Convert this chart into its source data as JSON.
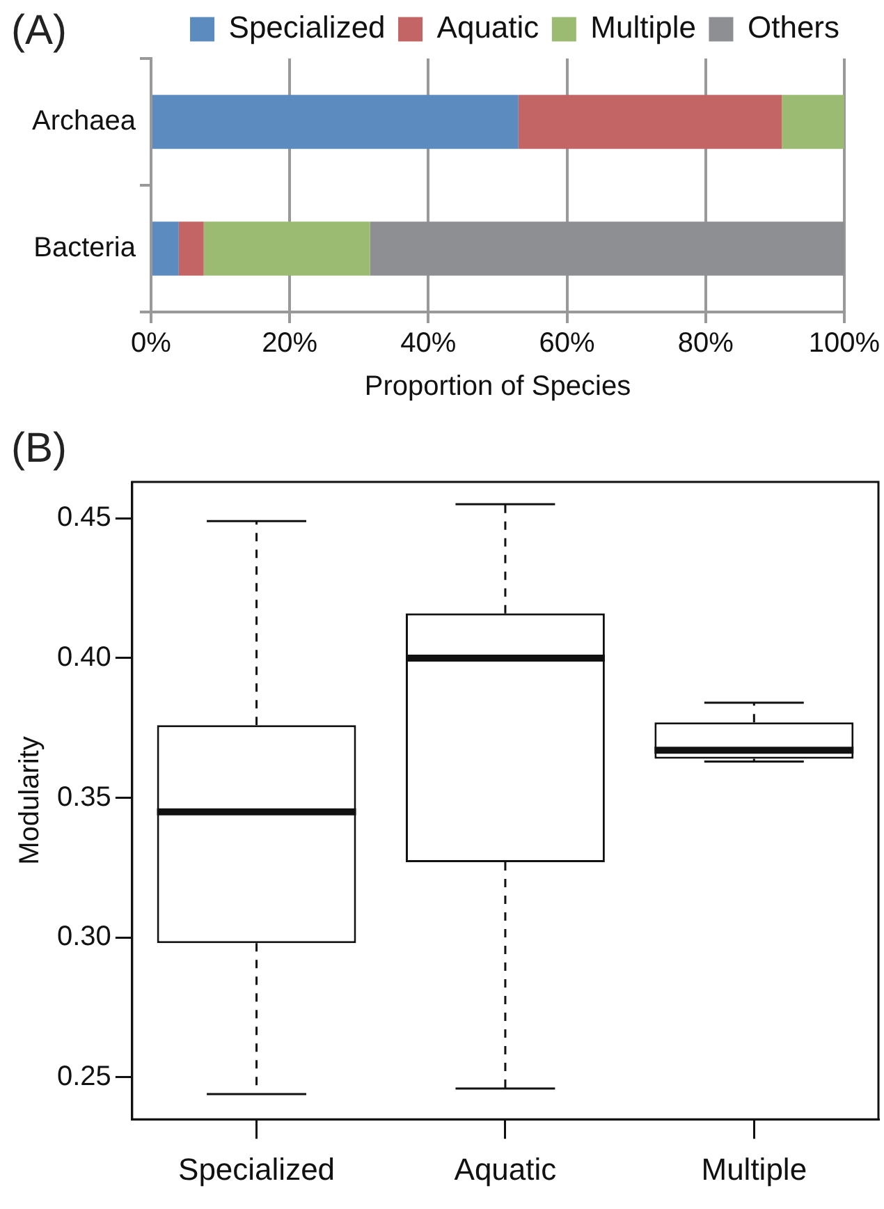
{
  "chart_data": [
    {
      "type": "bar",
      "orientation": "horizontal",
      "stacked": true,
      "categories": [
        "Archaea",
        "Bacteria"
      ],
      "series": [
        {
          "name": "Specialized",
          "color": "#5b8bbf",
          "values": [
            53,
            4
          ]
        },
        {
          "name": "Aquatic",
          "color": "#c46565",
          "values": [
            38,
            3.6
          ]
        },
        {
          "name": "Multiple",
          "color": "#9bbb73",
          "values": [
            9,
            24
          ]
        },
        {
          "name": "Others",
          "color": "#8e8f93",
          "values": [
            0,
            68.4
          ]
        }
      ],
      "xlim": [
        0,
        100
      ],
      "xticks": [
        {
          "value": 0,
          "label": "0%"
        },
        {
          "value": 20,
          "label": "20%"
        },
        {
          "value": 40,
          "label": "40%"
        },
        {
          "value": 60,
          "label": "60%"
        },
        {
          "value": 80,
          "label": "80%"
        },
        {
          "value": 100,
          "label": "100%"
        }
      ],
      "xlabel": "Proportion of Species",
      "grid": "x",
      "legend": "top",
      "annotations": [
        "(A)"
      ]
    },
    {
      "type": "box",
      "categories": [
        "Specialized",
        "Aquatic",
        "Multiple"
      ],
      "boxes": [
        {
          "low": 0.244,
          "q1": 0.298,
          "median": 0.345,
          "q3": 0.376,
          "high": 0.449
        },
        {
          "low": 0.246,
          "q1": 0.327,
          "median": 0.4,
          "q3": 0.416,
          "high": 0.455
        },
        {
          "low": 0.363,
          "q1": 0.364,
          "median": 0.367,
          "q3": 0.377,
          "high": 0.384
        }
      ],
      "ylabel": "Modularity",
      "ylim": [
        0.235,
        0.463
      ],
      "yticks": [
        {
          "value": 0.25,
          "label": "0.25"
        },
        {
          "value": 0.3,
          "label": "0.30"
        },
        {
          "value": 0.35,
          "label": "0.35"
        },
        {
          "value": 0.4,
          "label": "0.40"
        },
        {
          "value": 0.45,
          "label": "0.45"
        }
      ],
      "grid": false,
      "legend": false,
      "annotations": [
        "(B)"
      ]
    }
  ]
}
